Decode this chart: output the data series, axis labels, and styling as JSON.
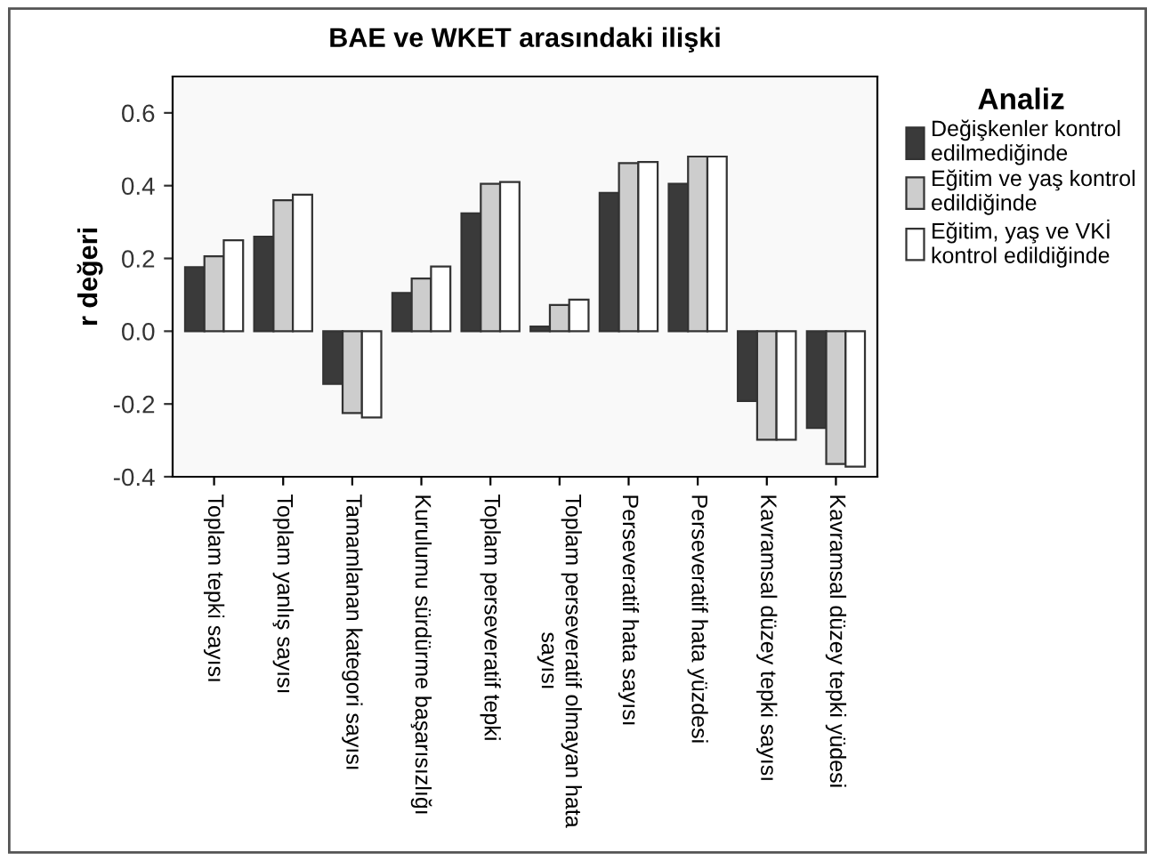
{
  "chart_data": {
    "type": "bar",
    "title": "BAE ve WKET arasındaki ilişki",
    "ylabel": "r değeri",
    "legend_title": "Analiz",
    "legend": "right",
    "categories": [
      "Toplam tepki sayısı",
      "Toplam yanlış sayısı",
      "Tamamlanan kategori sayısı",
      "Kurulumu sürdürme başarısızlığı",
      "Toplam perseveratif tepki",
      "Toplam perseveratif olmayan hata\nsayısı",
      "Perseveratif hata sayısı",
      "Perseveratif hata yüzdesi",
      "Kavramsal düzey tepki sayısı",
      "Kavramsal düzey tepki yüdesi"
    ],
    "series": [
      {
        "name": "Değişkenler kontrol\nedilmediğinde",
        "color": "#3a3a3a",
        "values": [
          0.176,
          0.26,
          -0.145,
          0.105,
          0.324,
          0.013,
          0.38,
          0.405,
          -0.192,
          -0.266
        ]
      },
      {
        "name": "Eğitim ve yaş kontrol\nedildiğinde",
        "color": "#cdcdcd",
        "values": [
          0.206,
          0.36,
          -0.225,
          0.145,
          0.405,
          0.072,
          0.462,
          0.48,
          -0.298,
          -0.365
        ]
      },
      {
        "name": "Eğitim, yaş ve VKİ\nkontrol edildiğinde",
        "color": "#ffffff",
        "values": [
          0.25,
          0.375,
          -0.237,
          0.178,
          0.41,
          0.087,
          0.465,
          0.48,
          -0.298,
          -0.372
        ]
      }
    ],
    "ylim": [
      -0.4,
      0.7
    ],
    "yticks": [
      {
        "value": -0.4,
        "label": "-0.4"
      },
      {
        "value": -0.2,
        "label": "-0.2"
      },
      {
        "value": 0.0,
        "label": "0.0"
      },
      {
        "value": 0.2,
        "label": "0.2"
      },
      {
        "value": 0.4,
        "label": "0.4"
      },
      {
        "value": 0.6,
        "label": "0.6"
      }
    ],
    "grid": false
  }
}
